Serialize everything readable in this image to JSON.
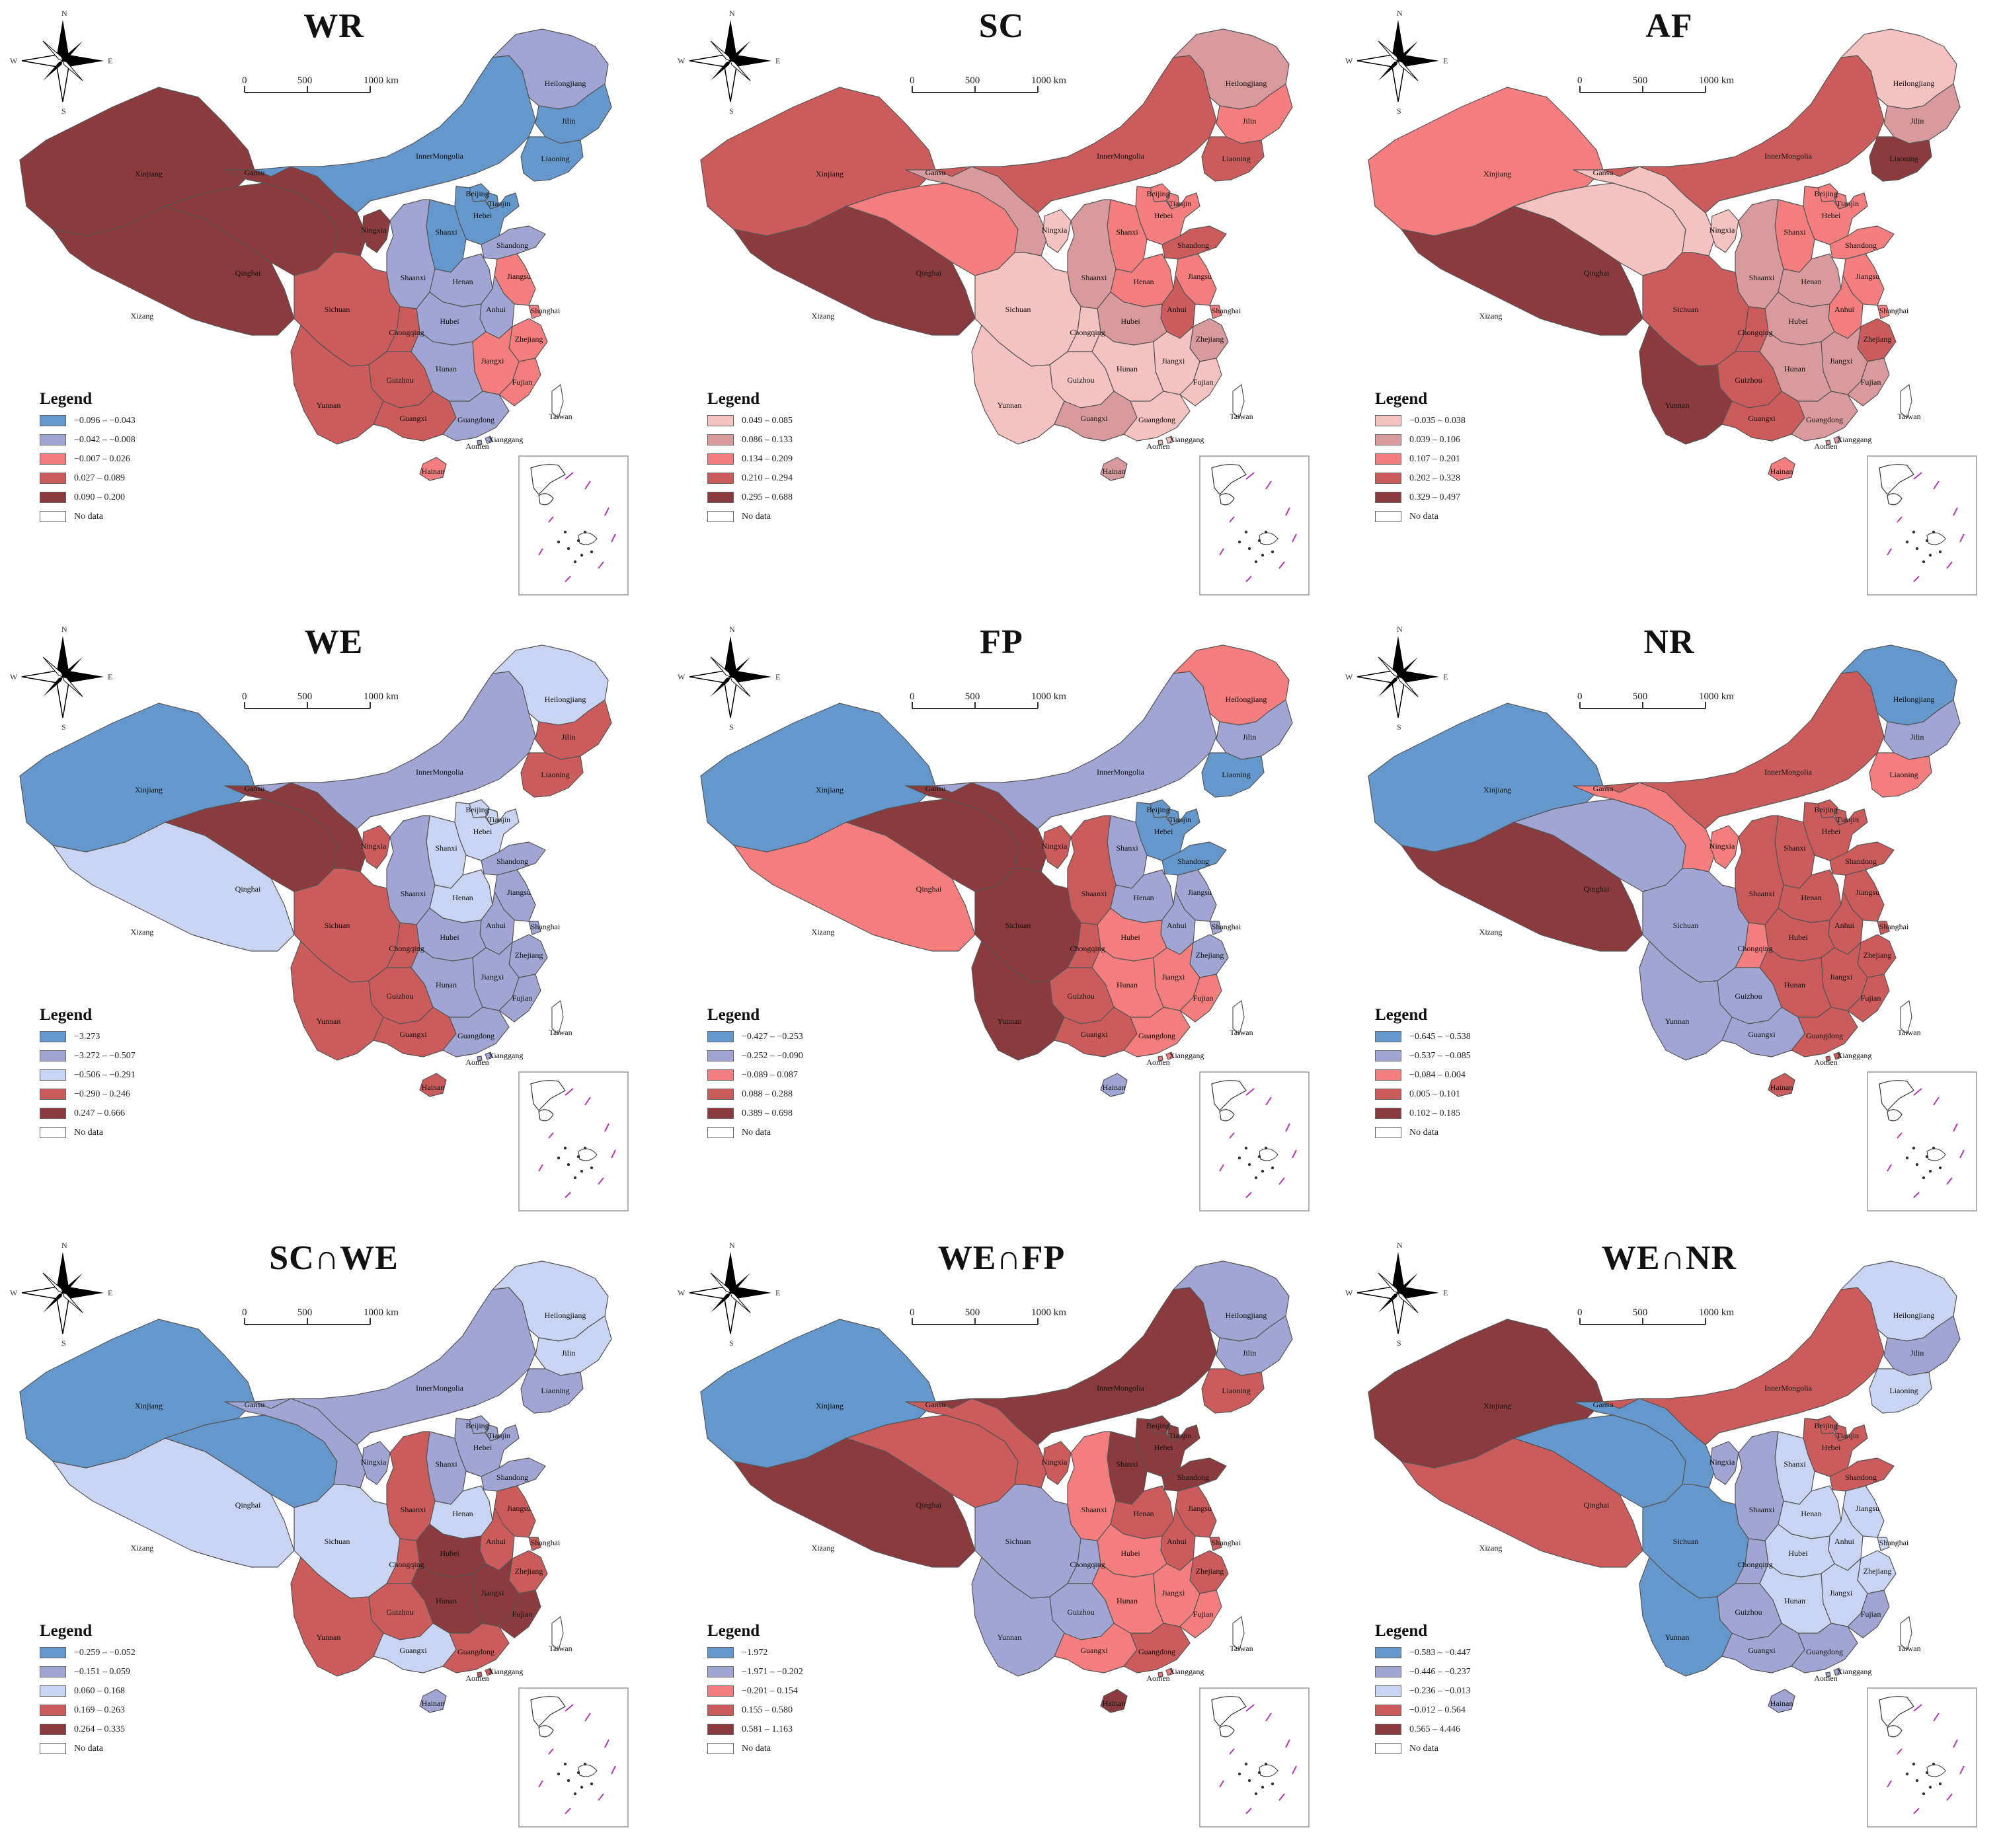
{
  "colors": {
    "blue_dark": "#6497cb",
    "blue_mid": "#a1a5d3",
    "blue_light": "#c8d4f2",
    "pink_pale": "#f5c2c2",
    "pink_mid": "#d89a9c",
    "salmon": "#f47d7d",
    "red": "#cc5b5b",
    "maroon": "#8b3b3e",
    "no_data": "#ffffff"
  },
  "legend_title": "Legend",
  "no_data_label": "No data",
  "scale_labels": [
    "0",
    "500",
    "1000 km"
  ],
  "compass": {
    "n": "N",
    "s": "S",
    "e": "E",
    "w": "W"
  },
  "provinces": [
    "Xinjiang",
    "Xizang",
    "Qinghai",
    "Gansu",
    "InnerMongolia",
    "Heilongjiang",
    "Jilin",
    "Liaoning",
    "Beijing",
    "Tianjin",
    "Hebei",
    "Shanxi",
    "Shandong",
    "Ningxia",
    "Shaanxi",
    "Henan",
    "Jiangsu",
    "Anhui",
    "Shanghai",
    "Hubei",
    "Sichuan",
    "Chongqing",
    "Zhejiang",
    "Jiangxi",
    "Hunan",
    "Guizhou",
    "Yunnan",
    "Guangxi",
    "Guangdong",
    "Fujian",
    "Hainan",
    "Taiwan",
    "Xianggang",
    "Aomen"
  ],
  "panels": [
    {
      "title": "WR",
      "legend": [
        {
          "label": "−0.096 – −0.043",
          "color": "#6497cb"
        },
        {
          "label": "−0.042 – −0.008",
          "color": "#a1a5d3"
        },
        {
          "label": "−0.007 – 0.026",
          "color": "#f47d7d"
        },
        {
          "label": "0.027 – 0.089",
          "color": "#cc5b5b"
        },
        {
          "label": "0.090 – 0.200",
          "color": "#8b3b3e"
        }
      ],
      "fills": {
        "Xinjiang": 5,
        "Xizang": 5,
        "Qinghai": 5,
        "Gansu": 5,
        "InnerMongolia": 1,
        "Heilongjiang": 2,
        "Jilin": 1,
        "Liaoning": 1,
        "Beijing": 1,
        "Tianjin": 1,
        "Hebei": 1,
        "Shanxi": 1,
        "Shandong": 2,
        "Ningxia": 5,
        "Shaanxi": 2,
        "Henan": 2,
        "Jiangsu": 3,
        "Anhui": 2,
        "Shanghai": 3,
        "Hubei": 2,
        "Sichuan": 4,
        "Chongqing": 4,
        "Zhejiang": 3,
        "Jiangxi": 3,
        "Hunan": 2,
        "Guizhou": 4,
        "Yunnan": 4,
        "Guangxi": 4,
        "Guangdong": 2,
        "Fujian": 3,
        "Hainan": 3,
        "Taiwan": 0,
        "Xianggang": 2,
        "Aomen": 2
      }
    },
    {
      "title": "SC",
      "legend": [
        {
          "label": "0.049 – 0.085",
          "color": "#f5c2c2"
        },
        {
          "label": "0.086 – 0.133",
          "color": "#d89a9c"
        },
        {
          "label": "0.134 – 0.209",
          "color": "#f47d7d"
        },
        {
          "label": "0.210 – 0.294",
          "color": "#cc5b5b"
        },
        {
          "label": "0.295 – 0.688",
          "color": "#8b3b3e"
        }
      ],
      "fills": {
        "Xinjiang": 4,
        "Xizang": 5,
        "Qinghai": 3,
        "Gansu": 2,
        "InnerMongolia": 4,
        "Heilongjiang": 2,
        "Jilin": 3,
        "Liaoning": 4,
        "Beijing": 3,
        "Tianjin": 3,
        "Hebei": 3,
        "Shanxi": 3,
        "Shandong": 4,
        "Ningxia": 1,
        "Shaanxi": 2,
        "Henan": 3,
        "Jiangsu": 3,
        "Anhui": 4,
        "Shanghai": 3,
        "Hubei": 2,
        "Sichuan": 1,
        "Chongqing": 1,
        "Zhejiang": 2,
        "Jiangxi": 1,
        "Hunan": 1,
        "Guizhou": 1,
        "Yunnan": 1,
        "Guangxi": 2,
        "Guangdong": 1,
        "Fujian": 1,
        "Hainan": 2,
        "Taiwan": 0,
        "Xianggang": 1,
        "Aomen": 1
      }
    },
    {
      "title": "AF",
      "legend": [
        {
          "label": "−0.035 – 0.038",
          "color": "#f5c2c2"
        },
        {
          "label": "0.039 – 0.106",
          "color": "#d89a9c"
        },
        {
          "label": "0.107 – 0.201",
          "color": "#f47d7d"
        },
        {
          "label": "0.202 – 0.328",
          "color": "#cc5b5b"
        },
        {
          "label": "0.329 – 0.497",
          "color": "#8b3b3e"
        }
      ],
      "fills": {
        "Xinjiang": 3,
        "Xizang": 5,
        "Qinghai": 1,
        "Gansu": 1,
        "InnerMongolia": 4,
        "Heilongjiang": 1,
        "Jilin": 2,
        "Liaoning": 5,
        "Beijing": 3,
        "Tianjin": 3,
        "Hebei": 3,
        "Shanxi": 3,
        "Shandong": 3,
        "Ningxia": 1,
        "Shaanxi": 2,
        "Henan": 2,
        "Jiangsu": 3,
        "Anhui": 3,
        "Shanghai": 3,
        "Hubei": 2,
        "Sichuan": 4,
        "Chongqing": 4,
        "Zhejiang": 4,
        "Jiangxi": 2,
        "Hunan": 2,
        "Guizhou": 4,
        "Yunnan": 5,
        "Guangxi": 4,
        "Guangdong": 2,
        "Fujian": 2,
        "Hainan": 3,
        "Taiwan": 0,
        "Xianggang": 2,
        "Aomen": 2
      }
    },
    {
      "title": "WE",
      "legend": [
        {
          "label": "−3.273",
          "color": "#6497cb"
        },
        {
          "label": "−3.272 – −0.507",
          "color": "#a1a5d3"
        },
        {
          "label": "−0.506 – −0.291",
          "color": "#c8d4f2"
        },
        {
          "label": "−0.290 – 0.246",
          "color": "#cc5b5b"
        },
        {
          "label": "0.247 – 0.666",
          "color": "#8b3b3e"
        }
      ],
      "fills": {
        "Xinjiang": 1,
        "Xizang": 3,
        "Qinghai": 5,
        "Gansu": 5,
        "InnerMongolia": 2,
        "Heilongjiang": 3,
        "Jilin": 4,
        "Liaoning": 4,
        "Beijing": 3,
        "Tianjin": 3,
        "Hebei": 3,
        "Shanxi": 3,
        "Shandong": 2,
        "Ningxia": 4,
        "Shaanxi": 2,
        "Henan": 3,
        "Jiangsu": 2,
        "Anhui": 2,
        "Shanghai": 2,
        "Hubei": 2,
        "Sichuan": 4,
        "Chongqing": 4,
        "Zhejiang": 2,
        "Jiangxi": 2,
        "Hunan": 2,
        "Guizhou": 4,
        "Yunnan": 4,
        "Guangxi": 4,
        "Guangdong": 2,
        "Fujian": 2,
        "Hainan": 4,
        "Taiwan": 0,
        "Xianggang": 2,
        "Aomen": 2
      }
    },
    {
      "title": "FP",
      "legend": [
        {
          "label": "−0.427 – −0.253",
          "color": "#6497cb"
        },
        {
          "label": "−0.252 – −0.090",
          "color": "#a1a5d3"
        },
        {
          "label": "−0.089 – 0.087",
          "color": "#f47d7d"
        },
        {
          "label": "0.088 – 0.288",
          "color": "#cc5b5b"
        },
        {
          "label": "0.389 – 0.698",
          "color": "#8b3b3e"
        }
      ],
      "fills": {
        "Xinjiang": 1,
        "Xizang": 3,
        "Qinghai": 5,
        "Gansu": 5,
        "InnerMongolia": 2,
        "Heilongjiang": 3,
        "Jilin": 2,
        "Liaoning": 1,
        "Beijing": 1,
        "Tianjin": 1,
        "Hebei": 1,
        "Shanxi": 2,
        "Shandong": 1,
        "Ningxia": 4,
        "Shaanxi": 4,
        "Henan": 2,
        "Jiangsu": 2,
        "Anhui": 2,
        "Shanghai": 2,
        "Hubei": 3,
        "Sichuan": 5,
        "Chongqing": 4,
        "Zhejiang": 2,
        "Jiangxi": 3,
        "Hunan": 3,
        "Guizhou": 4,
        "Yunnan": 5,
        "Guangxi": 4,
        "Guangdong": 3,
        "Fujian": 3,
        "Hainan": 2,
        "Taiwan": 0,
        "Xianggang": 3,
        "Aomen": 3
      }
    },
    {
      "title": "NR",
      "legend": [
        {
          "label": "−0.645 – −0.538",
          "color": "#6497cb"
        },
        {
          "label": "−0.537 – −0.085",
          "color": "#a1a5d3"
        },
        {
          "label": "−0.084 – 0.004",
          "color": "#f47d7d"
        },
        {
          "label": "0.005 – 0.101",
          "color": "#cc5b5b"
        },
        {
          "label": "0.102 – 0.185",
          "color": "#8b3b3e"
        }
      ],
      "fills": {
        "Xinjiang": 1,
        "Xizang": 5,
        "Qinghai": 2,
        "Gansu": 3,
        "InnerMongolia": 4,
        "Heilongjiang": 1,
        "Jilin": 2,
        "Liaoning": 3,
        "Beijing": 4,
        "Tianjin": 4,
        "Hebei": 4,
        "Shanxi": 4,
        "Shandong": 4,
        "Ningxia": 3,
        "Shaanxi": 4,
        "Henan": 4,
        "Jiangsu": 4,
        "Anhui": 4,
        "Shanghai": 4,
        "Hubei": 4,
        "Sichuan": 2,
        "Chongqing": 3,
        "Zhejiang": 4,
        "Jiangxi": 4,
        "Hunan": 4,
        "Guizhou": 2,
        "Yunnan": 2,
        "Guangxi": 2,
        "Guangdong": 4,
        "Fujian": 4,
        "Hainan": 4,
        "Taiwan": 0,
        "Xianggang": 4,
        "Aomen": 4
      }
    },
    {
      "title": "SC∩WE",
      "legend": [
        {
          "label": "−0.259 – −0.052",
          "color": "#6497cb"
        },
        {
          "label": "−0.151 – 0.059",
          "color": "#a1a5d3"
        },
        {
          "label": "0.060 – 0.168",
          "color": "#c8d4f2"
        },
        {
          "label": "0.169 – 0.263",
          "color": "#cc5b5b"
        },
        {
          "label": "0.264 – 0.335",
          "color": "#8b3b3e"
        }
      ],
      "fills": {
        "Xinjiang": 1,
        "Xizang": 3,
        "Qinghai": 1,
        "Gansu": 2,
        "InnerMongolia": 2,
        "Heilongjiang": 3,
        "Jilin": 3,
        "Liaoning": 2,
        "Beijing": 2,
        "Tianjin": 2,
        "Hebei": 2,
        "Shanxi": 2,
        "Shandong": 2,
        "Ningxia": 2,
        "Shaanxi": 4,
        "Henan": 3,
        "Jiangsu": 4,
        "Anhui": 4,
        "Shanghai": 4,
        "Hubei": 5,
        "Sichuan": 3,
        "Chongqing": 4,
        "Zhejiang": 4,
        "Jiangxi": 5,
        "Hunan": 5,
        "Guizhou": 4,
        "Yunnan": 4,
        "Guangxi": 3,
        "Guangdong": 4,
        "Fujian": 5,
        "Hainan": 2,
        "Taiwan": 0,
        "Xianggang": 4,
        "Aomen": 4
      }
    },
    {
      "title": "WE∩FP",
      "legend": [
        {
          "label": "−1.972",
          "color": "#6497cb"
        },
        {
          "label": "−1.971 – −0.202",
          "color": "#a1a5d3"
        },
        {
          "label": "−0.201 – 0.154",
          "color": "#f47d7d"
        },
        {
          "label": "0.155 – 0.580",
          "color": "#cc5b5b"
        },
        {
          "label": "0.581 – 1.163",
          "color": "#8b3b3e"
        }
      ],
      "fills": {
        "Xinjiang": 1,
        "Xizang": 5,
        "Qinghai": 4,
        "Gansu": 4,
        "InnerMongolia": 5,
        "Heilongjiang": 2,
        "Jilin": 2,
        "Liaoning": 4,
        "Beijing": 5,
        "Tianjin": 5,
        "Hebei": 5,
        "Shanxi": 5,
        "Shandong": 5,
        "Ningxia": 4,
        "Shaanxi": 3,
        "Henan": 4,
        "Jiangsu": 4,
        "Anhui": 4,
        "Shanghai": 4,
        "Hubei": 3,
        "Sichuan": 2,
        "Chongqing": 2,
        "Zhejiang": 4,
        "Jiangxi": 3,
        "Hunan": 3,
        "Guizhou": 2,
        "Yunnan": 2,
        "Guangxi": 3,
        "Guangdong": 4,
        "Fujian": 3,
        "Hainan": 5,
        "Taiwan": 0,
        "Xianggang": 3,
        "Aomen": 3
      }
    },
    {
      "title": "WE∩NR",
      "legend": [
        {
          "label": "−0.583 – −0.447",
          "color": "#6497cb"
        },
        {
          "label": "−0.446 – −0.237",
          "color": "#a1a5d3"
        },
        {
          "label": "−0.236 – −0.013",
          "color": "#c8d4f2"
        },
        {
          "label": "−0.012 – 0.564",
          "color": "#cc5b5b"
        },
        {
          "label": "0.565 – 4.446",
          "color": "#8b3b3e"
        }
      ],
      "fills": {
        "Xinjiang": 5,
        "Xizang": 4,
        "Qinghai": 1,
        "Gansu": 1,
        "InnerMongolia": 4,
        "Heilongjiang": 3,
        "Jilin": 2,
        "Liaoning": 3,
        "Beijing": 4,
        "Tianjin": 4,
        "Hebei": 4,
        "Shanxi": 3,
        "Shandong": 4,
        "Ningxia": 2,
        "Shaanxi": 2,
        "Henan": 3,
        "Jiangsu": 3,
        "Anhui": 3,
        "Shanghai": 3,
        "Hubei": 3,
        "Sichuan": 1,
        "Chongqing": 2,
        "Zhejiang": 3,
        "Jiangxi": 3,
        "Hunan": 3,
        "Guizhou": 2,
        "Yunnan": 1,
        "Guangxi": 2,
        "Guangdong": 2,
        "Fujian": 2,
        "Hainan": 2,
        "Taiwan": 0,
        "Xianggang": 2,
        "Aomen": 2
      }
    }
  ]
}
